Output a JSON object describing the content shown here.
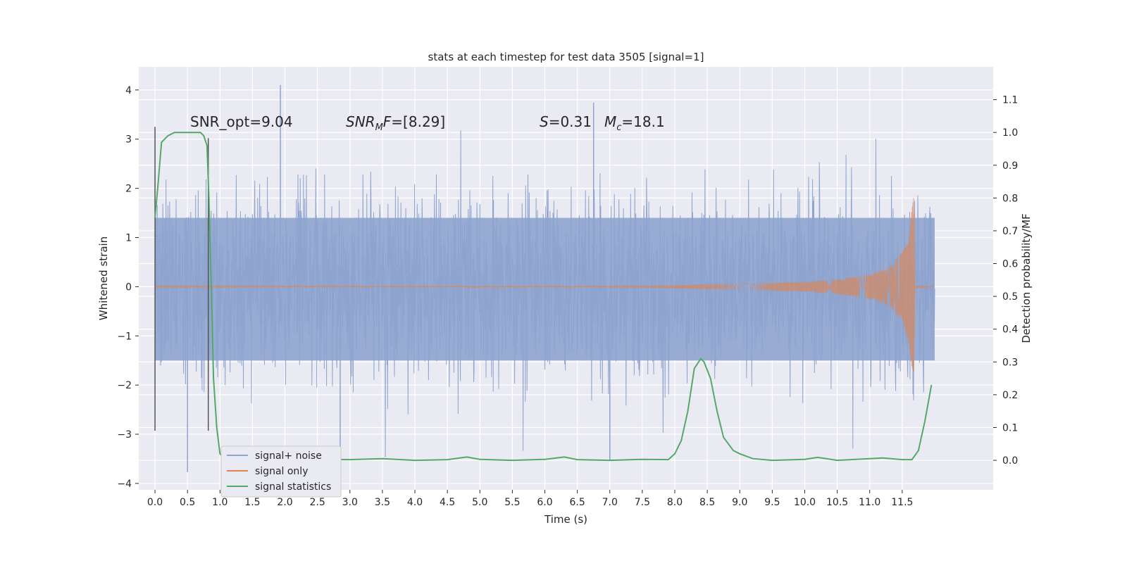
{
  "chart_data": {
    "type": "line",
    "title": "stats at each timestep for test data 3505 [signal=1]",
    "xlabel": "Time (s)",
    "ylabel": "Whitened strain",
    "y2label": "Detection probability/MF",
    "xlim": [
      -0.25,
      12.9
    ],
    "ylim": [
      -4.13,
      4.47
    ],
    "y2lim": [
      -0.09,
      1.2
    ],
    "x_ticks": [
      0.0,
      0.5,
      1.0,
      1.5,
      2.0,
      2.5,
      3.0,
      3.5,
      4.0,
      4.5,
      5.0,
      5.5,
      6.0,
      6.5,
      7.0,
      7.5,
      8.0,
      8.5,
      9.0,
      9.5,
      10.0,
      10.5,
      11.0,
      11.5
    ],
    "x_tick_labels": [
      "0.0",
      "0.5",
      "1.0",
      "1.5",
      "2.0",
      "2.5",
      "3.0",
      "3.5",
      "4.0",
      "4.5",
      "5.0",
      "5.5",
      "6.0",
      "6.5",
      "7.0",
      "7.5",
      "8.0",
      "8.5",
      "9.0",
      "9.5",
      "10.0",
      "10.5",
      "11.0",
      "11.5"
    ],
    "y_ticks": [
      -4,
      -3,
      -2,
      -1,
      0,
      1,
      2,
      3,
      4
    ],
    "y_tick_labels": [
      "−4",
      "−3",
      "−2",
      "−1",
      "0",
      "1",
      "2",
      "3",
      "4"
    ],
    "y2_ticks": [
      0.0,
      0.1,
      0.2,
      0.3,
      0.4,
      0.5,
      0.6,
      0.7,
      0.8,
      0.9,
      1.0,
      1.1
    ],
    "y2_tick_labels": [
      "0.0",
      "0.1",
      "0.2",
      "0.3",
      "0.4",
      "0.5",
      "0.6",
      "0.7",
      "0.8",
      "0.9",
      "1.0",
      "1.1"
    ],
    "grid": true,
    "legend_position": "lower-left",
    "series": [
      {
        "name": "signal+ noise",
        "axis": "left",
        "color": "#8ea4cf",
        "description_values": {
          "x_range": [
            0.0,
            12.0
          ],
          "typical_range": [
            -1.6,
            2.2
          ],
          "max_y": 4.1,
          "min_y": -3.77
        }
      },
      {
        "name": "signal only",
        "axis": "left",
        "color": "#dd8452",
        "envelope": {
          "x": [
            0.0,
            7.5,
            8.0,
            9.0,
            10.0,
            10.5,
            11.0,
            11.3,
            11.5,
            11.6,
            11.65,
            11.68,
            11.7,
            12.0
          ],
          "amplitude": [
            0.005,
            0.01,
            0.03,
            0.06,
            0.1,
            0.15,
            0.25,
            0.4,
            0.7,
            1.1,
            1.7,
            1.9,
            0.02,
            0.0
          ]
        }
      },
      {
        "name": "signal statistics",
        "axis": "right",
        "color": "#55a868",
        "x": [
          0.0,
          0.05,
          0.1,
          0.2,
          0.3,
          0.5,
          0.7,
          0.75,
          0.8,
          0.83,
          0.87,
          0.9,
          0.95,
          1.0,
          1.1,
          1.5,
          1.7,
          2.0,
          2.5,
          3.0,
          3.5,
          4.0,
          4.5,
          4.8,
          5.0,
          5.5,
          6.0,
          6.3,
          6.5,
          7.0,
          7.5,
          7.9,
          8.0,
          8.1,
          8.2,
          8.3,
          8.4,
          8.45,
          8.55,
          8.65,
          8.75,
          8.9,
          9.0,
          9.2,
          9.5,
          10.0,
          10.2,
          10.5,
          11.0,
          11.2,
          11.5,
          11.65,
          11.75,
          11.85,
          11.95
        ],
        "y": [
          0.74,
          0.85,
          0.97,
          0.99,
          1.0,
          1.0,
          1.0,
          0.99,
          0.96,
          0.8,
          0.5,
          0.25,
          0.1,
          0.02,
          0.0,
          0.0,
          0.007,
          0.003,
          0.003,
          0.002,
          0.005,
          0.0,
          0.002,
          0.01,
          0.003,
          0.0,
          0.003,
          0.01,
          0.002,
          0.0,
          0.003,
          0.002,
          0.02,
          0.06,
          0.15,
          0.28,
          0.31,
          0.3,
          0.25,
          0.15,
          0.07,
          0.03,
          0.02,
          0.005,
          0.0,
          0.003,
          0.009,
          0.0,
          0.005,
          0.007,
          0.002,
          0.002,
          0.03,
          0.12,
          0.23
        ]
      }
    ],
    "vertical_markers": [
      {
        "x": 0.0,
        "y_range": [
          -2.93,
          3.25
        ]
      },
      {
        "x": 0.82,
        "y_range": [
          -2.93,
          3.02
        ]
      }
    ],
    "annotations": {
      "snr_opt": "SNR_opt=9.04",
      "snr_mf_main": "SNR",
      "snr_mf_sub": "M",
      "snr_mf_tail": "F=[8.29]",
      "s_var": "S",
      "s_val": "=0.31",
      "mc_var": "M",
      "mc_sub": "c",
      "mc_val": "=18.1"
    }
  }
}
